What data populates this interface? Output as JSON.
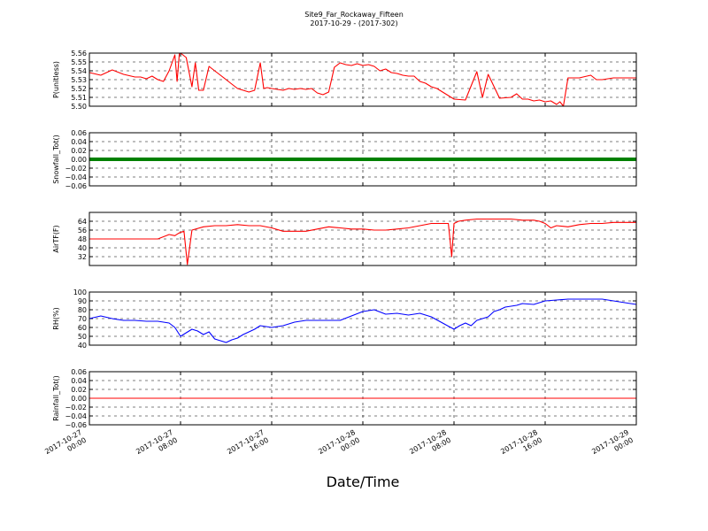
{
  "title": "Site9_Far_Rockaway_Fifteen",
  "subtitle": "2017-10-29 - (2017-302)",
  "xlabel": "Date/Time",
  "chart_data": [
    {
      "type": "line",
      "ylabel": "P(unitless)",
      "ylim": [
        5.5,
        5.56
      ],
      "yticks": [
        "5.50",
        "5.51",
        "5.52",
        "5.53",
        "5.54",
        "5.55",
        "5.56"
      ],
      "color": "#ff0000",
      "x": [
        0,
        1,
        2,
        3,
        4,
        4.5,
        5,
        5.5,
        6,
        6.5,
        7,
        7.5,
        7.7,
        7.9,
        8,
        8.2,
        8.5,
        9,
        9.3,
        9.6,
        10,
        10.5,
        11,
        11.5,
        12,
        12.5,
        13,
        13.5,
        14,
        14.5,
        15,
        15.3,
        15.6,
        16,
        16.5,
        17,
        17.5,
        18,
        18.5,
        19,
        19.5,
        20,
        20.5,
        21,
        21.5,
        22,
        22.5,
        23,
        23.5,
        24,
        24.5,
        25,
        25.5,
        26,
        26.5,
        27,
        27.5,
        28,
        28.5,
        29,
        29.5,
        30,
        30.5,
        31,
        31.5,
        32,
        33,
        34,
        34.5,
        35,
        36,
        37,
        37.5,
        38,
        38.5,
        39,
        39.5,
        40,
        40.5,
        41,
        41.3,
        41.6,
        42,
        43,
        44,
        44.5,
        45,
        46,
        46.5,
        47,
        48
      ],
      "y": [
        5.538,
        5.535,
        5.541,
        5.536,
        5.533,
        5.533,
        5.531,
        5.534,
        5.53,
        5.528,
        5.54,
        5.558,
        5.528,
        5.56,
        5.56,
        5.558,
        5.555,
        5.522,
        5.549,
        5.518,
        5.518,
        5.545,
        5.54,
        5.535,
        5.53,
        5.525,
        5.52,
        5.518,
        5.516,
        5.518,
        5.549,
        5.52,
        5.521,
        5.52,
        5.519,
        5.518,
        5.52,
        5.519,
        5.52,
        5.519,
        5.52,
        5.515,
        5.513,
        5.516,
        5.544,
        5.549,
        5.547,
        5.546,
        5.548,
        5.546,
        5.547,
        5.545,
        5.54,
        5.542,
        5.538,
        5.537,
        5.535,
        5.534,
        5.534,
        5.528,
        5.526,
        5.522,
        5.52,
        5.516,
        5.512,
        5.508,
        5.507,
        5.539,
        5.51,
        5.536,
        5.509,
        5.51,
        5.514,
        5.508,
        5.508,
        5.506,
        5.507,
        5.505,
        5.506,
        5.502,
        5.505,
        5.5,
        5.532,
        5.532,
        5.535,
        5.53,
        5.53,
        5.532,
        5.532,
        5.532,
        5.532
      ]
    },
    {
      "type": "line",
      "ylabel": "Snowfall_Tot()",
      "ylim": [
        -0.06,
        0.06
      ],
      "yticks": [
        "−0.06",
        "−0.04",
        "−0.02",
        "0.00",
        "0.02",
        "0.04",
        "0.06"
      ],
      "color": "#008000",
      "x": [
        0,
        48
      ],
      "y": [
        0,
        0
      ]
    },
    {
      "type": "line",
      "ylabel": "AirTF(F)",
      "ylim": [
        24,
        72
      ],
      "yticks": [
        "32",
        "40",
        "48",
        "56",
        "64"
      ],
      "color": "#ff0000",
      "x": [
        0,
        2,
        4,
        5,
        6,
        7,
        7.5,
        7.8,
        8,
        8.3,
        8.6,
        9,
        10,
        11,
        12,
        13,
        14,
        14.5,
        15,
        16,
        17,
        18,
        19,
        20,
        21,
        22,
        23,
        24,
        25,
        26,
        27,
        28,
        29,
        30,
        31,
        31.5,
        31.8,
        32,
        32.4,
        33,
        34,
        35,
        36,
        37,
        38,
        39,
        39.5,
        40,
        40.5,
        41,
        42,
        43,
        44,
        45,
        46,
        47,
        48
      ],
      "y": [
        48,
        48,
        48,
        48,
        48,
        52,
        51,
        53,
        54,
        55,
        25,
        56,
        59,
        60,
        60,
        61,
        60,
        60,
        60,
        58,
        55,
        55,
        55,
        57,
        59,
        58,
        57,
        57,
        56,
        56,
        57,
        58,
        60,
        62,
        62,
        62,
        32,
        62,
        64,
        65,
        66,
        66,
        66,
        66,
        65,
        65,
        64,
        62,
        58,
        60,
        59,
        61,
        62,
        62,
        63,
        63,
        63
      ]
    },
    {
      "type": "line",
      "ylabel": "RH(%)",
      "ylim": [
        40,
        100
      ],
      "yticks": [
        "40",
        "50",
        "60",
        "70",
        "80",
        "90",
        "100"
      ],
      "color": "#0000ff",
      "x": [
        0,
        1,
        2,
        3,
        4,
        5,
        6,
        7,
        7.5,
        8,
        9,
        9.5,
        10,
        10.5,
        11,
        11.5,
        12,
        12.5,
        13,
        13.5,
        14,
        14.5,
        15,
        15.5,
        16,
        17,
        18,
        19,
        20,
        21,
        22,
        23,
        24,
        25,
        26,
        27,
        28,
        29,
        30,
        31,
        32,
        32.5,
        33,
        33.5,
        34,
        35,
        35.5,
        36,
        36.5,
        37,
        37.5,
        38,
        39,
        40,
        41,
        42,
        43,
        44,
        45,
        46,
        47,
        48
      ],
      "y": [
        70,
        73,
        70,
        68,
        68,
        67,
        67,
        65,
        60,
        50,
        58,
        56,
        52,
        55,
        47,
        45,
        43,
        46,
        48,
        52,
        55,
        58,
        62,
        61,
        60,
        62,
        66,
        68,
        68,
        68,
        68,
        73,
        78,
        80,
        75,
        76,
        74,
        76,
        72,
        65,
        58,
        62,
        65,
        62,
        68,
        72,
        78,
        80,
        83,
        84,
        85,
        87,
        86,
        90,
        91,
        92,
        92,
        92,
        92,
        90,
        88,
        86
      ]
    },
    {
      "type": "line",
      "ylabel": "Rainfall_Tot()",
      "ylim": [
        -0.06,
        0.06
      ],
      "yticks": [
        "−0.06",
        "−0.04",
        "−0.02",
        "0.00",
        "0.02",
        "0.04",
        "0.06"
      ],
      "color": "#ff0000",
      "x": [
        0,
        48
      ],
      "y": [
        0,
        0
      ]
    }
  ],
  "xticks": [
    {
      "value": 0,
      "line1": "2017-10-27",
      "line2": "00:00"
    },
    {
      "value": 8,
      "line1": "2017-10-27",
      "line2": "08:00"
    },
    {
      "value": 16,
      "line1": "2017-10-27",
      "line2": "16:00"
    },
    {
      "value": 24,
      "line1": "2017-10-28",
      "line2": "00:00"
    },
    {
      "value": 32,
      "line1": "2017-10-28",
      "line2": "08:00"
    },
    {
      "value": 40,
      "line1": "2017-10-28",
      "line2": "16:00"
    },
    {
      "value": 48,
      "line1": "2017-10-29",
      "line2": "00:00"
    }
  ],
  "xlim": [
    0,
    48
  ]
}
